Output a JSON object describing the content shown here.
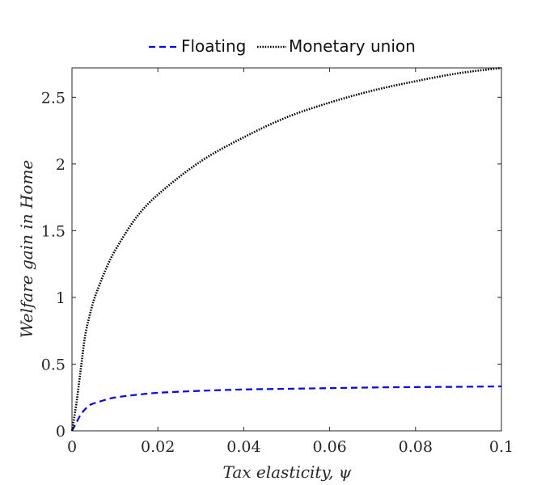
{
  "chart_data": {
    "type": "line",
    "title": "",
    "xlabel": "Tax elasticity, ψ",
    "ylabel": "Welfare gain in Home",
    "xlim": [
      0,
      0.1
    ],
    "ylim": [
      0,
      2.72
    ],
    "x_ticks": [
      0,
      0.02,
      0.04,
      0.06,
      0.08,
      0.1
    ],
    "x_tick_labels": [
      "0",
      "0.02",
      "0.04",
      "0.06",
      "0.08",
      "0.1"
    ],
    "y_ticks": [
      0,
      0.5,
      1,
      1.5,
      2,
      2.5
    ],
    "y_tick_labels": [
      "0",
      "0.5",
      "1",
      "1.5",
      "2",
      "2.5"
    ],
    "grid": false,
    "legend_position": "top-center",
    "series": [
      {
        "name": "Floating",
        "color": "#0000ff",
        "style": "dashed",
        "x": [
          0,
          0.001,
          0.002,
          0.003,
          0.004,
          0.005,
          0.006,
          0.008,
          0.01,
          0.015,
          0.02,
          0.03,
          0.04,
          0.05,
          0.06,
          0.07,
          0.08,
          0.09,
          0.1
        ],
        "y": [
          0,
          0.06,
          0.12,
          0.16,
          0.19,
          0.205,
          0.215,
          0.235,
          0.25,
          0.27,
          0.285,
          0.3,
          0.31,
          0.315,
          0.32,
          0.325,
          0.328,
          0.33,
          0.333
        ]
      },
      {
        "name": "Monetary union",
        "color": "#000000",
        "style": "dotted",
        "x": [
          0,
          0.001,
          0.002,
          0.003,
          0.004,
          0.005,
          0.006,
          0.008,
          0.01,
          0.015,
          0.02,
          0.03,
          0.04,
          0.05,
          0.06,
          0.07,
          0.08,
          0.09,
          0.1
        ],
        "y": [
          0,
          0.2,
          0.45,
          0.7,
          0.85,
          0.97,
          1.06,
          1.22,
          1.35,
          1.6,
          1.77,
          2.02,
          2.2,
          2.35,
          2.46,
          2.55,
          2.62,
          2.68,
          2.72
        ]
      }
    ]
  }
}
